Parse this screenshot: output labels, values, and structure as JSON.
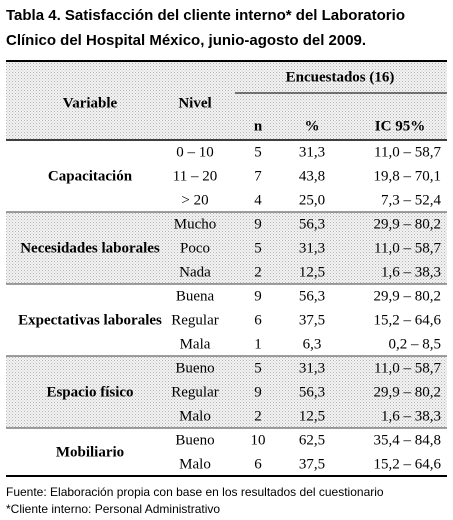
{
  "title": [
    "Tabla 4. Satisfacción del cliente interno* del Laboratorio",
    "Clínico del Hospital México,  junio-agosto del 2009."
  ],
  "table": {
    "header": {
      "variable": "Variable",
      "nivel": "Nivel",
      "encuestados": "Encuestados (16)",
      "n": "n",
      "pct": "%",
      "ic": "IC 95%"
    },
    "groups": [
      {
        "variable": "Capacitación",
        "rows": [
          [
            "0 – 10",
            "5",
            "31,3",
            "11,0 – 58,7"
          ],
          [
            "11 – 20",
            "7",
            "43,8",
            "19,8 – 70,1"
          ],
          [
            "> 20",
            "4",
            "25,0",
            "7,3 – 52,4"
          ]
        ]
      },
      {
        "variable": "Necesidades laborales",
        "rows": [
          [
            "Mucho",
            "9",
            "56,3",
            "29,9 – 80,2"
          ],
          [
            "Poco",
            "5",
            "31,3",
            "11,0 – 58,7"
          ],
          [
            "Nada",
            "2",
            "12,5",
            "1,6 – 38,3"
          ]
        ]
      },
      {
        "variable": "Expectativas laborales",
        "rows": [
          [
            "Buena",
            "9",
            "56,3",
            "29,9 – 80,2"
          ],
          [
            "Regular",
            "6",
            "37,5",
            "15,2 – 64,6"
          ],
          [
            "Mala",
            "1",
            "6,3",
            "0,2 – 8,5"
          ]
        ]
      },
      {
        "variable": "Espacio físico",
        "rows": [
          [
            "Bueno",
            "5",
            "31,3",
            "11,0 – 58,7"
          ],
          [
            "Regular",
            "9",
            "56,3",
            "29,9 – 80,2"
          ],
          [
            "Malo",
            "2",
            "12,5",
            "1,6 – 38,3"
          ]
        ]
      },
      {
        "variable": "Mobiliario",
        "rows": [
          [
            "Bueno",
            "10",
            "62,5",
            "35,4 – 84,8"
          ],
          [
            "Malo",
            "6",
            "37,5",
            "15,2 – 64,6"
          ]
        ]
      }
    ]
  },
  "footer": [
    "Fuente: Elaboración propia con base en los resultados del cuestionario",
    "*Cliente interno: Personal Administrativo"
  ]
}
